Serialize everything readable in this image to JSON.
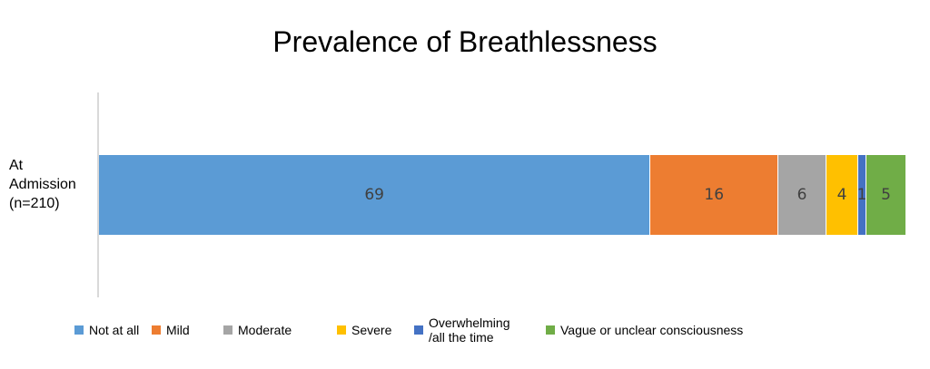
{
  "chart_data": {
    "type": "bar",
    "orientation": "horizontal",
    "stacked": true,
    "title": "Prevalence of Breathlessness",
    "categories": [
      "At\nAdmission\n(n=210)"
    ],
    "series": [
      {
        "name": "Not at all",
        "values": [
          69
        ],
        "color": "#5b9bd5"
      },
      {
        "name": "Mild",
        "values": [
          16
        ],
        "color": "#ed7d31"
      },
      {
        "name": "Moderate",
        "values": [
          6
        ],
        "color": "#a5a5a5"
      },
      {
        "name": "Severe",
        "values": [
          4
        ],
        "color": "#ffc000"
      },
      {
        "name": "Overwhelming\n/all the time",
        "values": [
          1
        ],
        "color": "#4472c4"
      },
      {
        "name": "Vague or unclear consciousness",
        "values": [
          5
        ],
        "color": "#70ad47"
      }
    ],
    "xlim": [
      0,
      101
    ],
    "grid": false,
    "legend": "bottom"
  }
}
